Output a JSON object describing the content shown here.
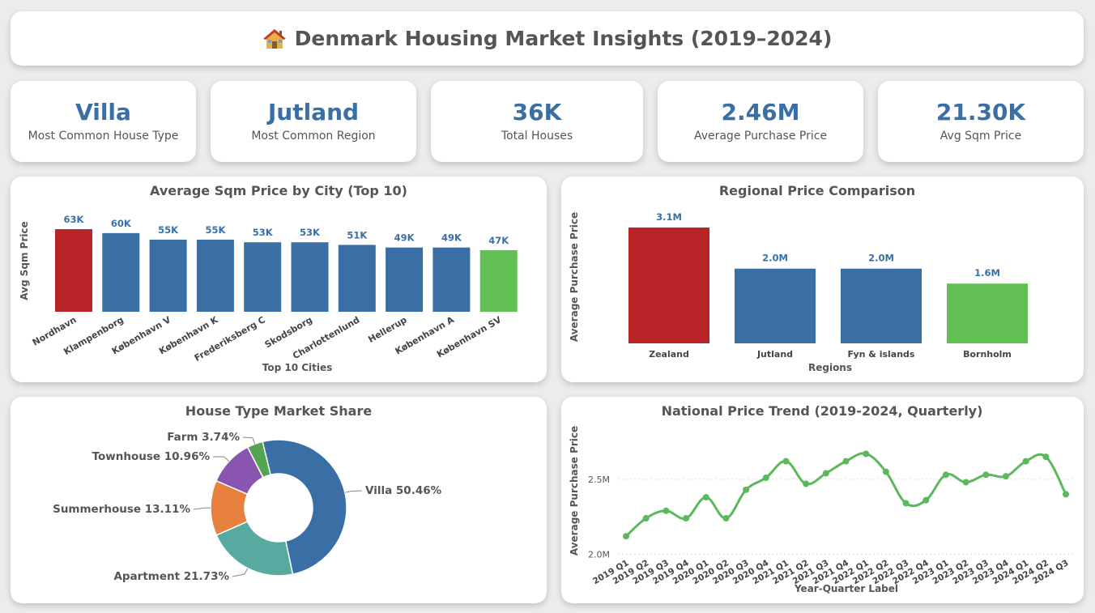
{
  "header": {
    "title": "Denmark Housing Market Insights (2019–2024)",
    "icon": "house-icon"
  },
  "kpis": [
    {
      "value": "Villa",
      "label": "Most Common House Type"
    },
    {
      "value": "Jutland",
      "label": "Most Common Region"
    },
    {
      "value": "36K",
      "label": "Total Houses"
    },
    {
      "value": "2.46M",
      "label": "Average Purchase Price"
    },
    {
      "value": "21.30K",
      "label": "Avg Sqm Price"
    }
  ],
  "colors": {
    "blue": "#3a6fa5",
    "red": "#b82428",
    "green": "#62bf54",
    "line": "#5cb85c"
  },
  "chart_data": [
    {
      "type": "bar",
      "title": "Average Sqm Price by City (Top 10)",
      "xlabel": "Top 10 Cities",
      "ylabel": "Avg Sqm Price",
      "categories": [
        "Nordhavn",
        "Klampenborg",
        "København V",
        "København K",
        "Frederiksberg C",
        "Skodsborg",
        "Charlottenlund",
        "Hellerup",
        "København A",
        "København SV"
      ],
      "values": [
        63,
        60,
        55,
        55,
        53,
        53,
        51,
        49,
        49,
        47
      ],
      "labels": [
        "63K",
        "60K",
        "55K",
        "55K",
        "53K",
        "53K",
        "51K",
        "49K",
        "49K",
        "47K"
      ],
      "ylim": [
        0,
        68
      ]
    },
    {
      "type": "bar",
      "title": "Regional Price Comparison",
      "xlabel": "Regions",
      "ylabel": "Average Purchase Price",
      "categories": [
        "Zealand",
        "Jutland",
        "Fyn & islands",
        "Bornholm"
      ],
      "values": [
        3.1,
        2.0,
        2.0,
        1.6
      ],
      "labels": [
        "3.1M",
        "2.0M",
        "2.0M",
        "1.6M"
      ],
      "ylim": [
        0,
        3.45
      ]
    },
    {
      "type": "pie",
      "title": "House Type Market Share",
      "slices": [
        {
          "name": "Villa",
          "value": 50.46,
          "label": "Villa 50.46%",
          "color": "#3a6fa5"
        },
        {
          "name": "Apartment",
          "value": 21.73,
          "label": "Apartment 21.73%",
          "color": "#58aaa0"
        },
        {
          "name": "Summerhouse",
          "value": 13.11,
          "label": "Summerhouse 13.11%",
          "color": "#e8813e"
        },
        {
          "name": "Townhouse",
          "value": 10.96,
          "label": "Townhouse 10.96%",
          "color": "#8a55b0"
        },
        {
          "name": "Farm",
          "value": 3.74,
          "label": "Farm 3.74%",
          "color": "#55a454"
        }
      ]
    },
    {
      "type": "line",
      "title": "National Price Trend (2019-2024, Quarterly)",
      "xlabel": "Year-Quarter Label",
      "ylabel": "Average Purchase Price",
      "x": [
        "2019 Q1",
        "2019 Q2",
        "2019 Q3",
        "2019 Q4",
        "2020 Q1",
        "2020 Q2",
        "2020 Q3",
        "2020 Q4",
        "2021 Q1",
        "2021 Q2",
        "2021 Q3",
        "2021 Q4",
        "2022 Q1",
        "2022 Q2",
        "2022 Q3",
        "2022 Q4",
        "2023 Q1",
        "2023 Q2",
        "2023 Q3",
        "2023 Q4",
        "2024 Q1",
        "2024 Q2",
        "2024 Q3"
      ],
      "y": [
        2.12,
        2.24,
        2.29,
        2.24,
        2.38,
        2.24,
        2.43,
        2.51,
        2.62,
        2.47,
        2.54,
        2.62,
        2.67,
        2.55,
        2.34,
        2.36,
        2.53,
        2.48,
        2.53,
        2.52,
        2.62,
        2.65,
        2.4
      ],
      "yticks": [
        "2.0M",
        "2.5M"
      ],
      "ylim": [
        1.97,
        2.78
      ]
    }
  ]
}
